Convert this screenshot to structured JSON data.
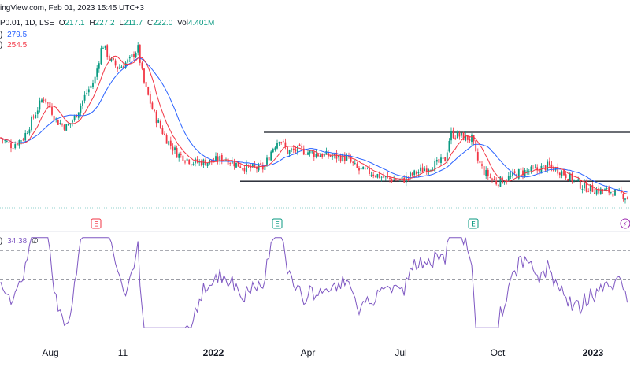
{
  "header": {
    "source_line": "ingView.com, Feb 01, 2023 15:45 UTC+3",
    "ohlc": {
      "prefix": "P0.01, 1D, LSE",
      "open_label": "O",
      "open": "217.1",
      "high_label": "H",
      "high": "227.2",
      "low_label": "L",
      "low": "211.7",
      "close_label": "C",
      "close": "222.0",
      "vol_label": "Vol",
      "vol": "4.401M"
    },
    "ma_slow": {
      "suffix": ")",
      "value": "279.5"
    },
    "ma_fast": {
      "suffix": ")",
      "value": "254.5"
    }
  },
  "rsi_header": {
    "suffix": ")",
    "value": "34.38",
    "extra": "∅"
  },
  "colors": {
    "up": "#089981",
    "down": "#f23645",
    "ma_fast": "#f23645",
    "ma_slow": "#2962ff",
    "rsi": "#7e57c2",
    "earnings": "#f23645",
    "earnings_alt": "#089981"
  },
  "x_axis_labels": [
    "Aug",
    "11",
    "2022",
    "Apr",
    "Jul",
    "Oct",
    "2023"
  ],
  "event_markers": [
    {
      "label": "E",
      "kind": "earnings-red"
    },
    {
      "label": "E",
      "kind": "earnings-green"
    },
    {
      "label": "E",
      "kind": "earnings-green"
    },
    {
      "label": "⚡",
      "kind": "dividend"
    }
  ],
  "chart_data": {
    "type": "line",
    "price_series_keypoints": [
      [
        0,
        460
      ],
      [
        15,
        440
      ],
      [
        30,
        460
      ],
      [
        45,
        520
      ],
      [
        55,
        560
      ],
      [
        62,
        540
      ],
      [
        72,
        500
      ],
      [
        85,
        485
      ],
      [
        95,
        510
      ],
      [
        110,
        570
      ],
      [
        120,
        600
      ],
      [
        130,
        690
      ],
      [
        140,
        650
      ],
      [
        150,
        630
      ],
      [
        165,
        650
      ],
      [
        175,
        680
      ],
      [
        182,
        600
      ],
      [
        195,
        520
      ],
      [
        210,
        460
      ],
      [
        225,
        420
      ],
      [
        245,
        400
      ],
      [
        265,
        400
      ],
      [
        285,
        410
      ],
      [
        300,
        395
      ],
      [
        315,
        385
      ],
      [
        335,
        385
      ],
      [
        345,
        430
      ],
      [
        355,
        460
      ],
      [
        365,
        425
      ],
      [
        380,
        430
      ],
      [
        400,
        420
      ],
      [
        420,
        415
      ],
      [
        440,
        410
      ],
      [
        455,
        380
      ],
      [
        470,
        375
      ],
      [
        490,
        360
      ],
      [
        510,
        355
      ],
      [
        525,
        370
      ],
      [
        540,
        385
      ],
      [
        555,
        395
      ],
      [
        565,
        405
      ],
      [
        572,
        470
      ],
      [
        582,
        465
      ],
      [
        600,
        455
      ],
      [
        605,
        410
      ],
      [
        615,
        375
      ],
      [
        630,
        350
      ],
      [
        645,
        360
      ],
      [
        660,
        375
      ],
      [
        680,
        380
      ],
      [
        695,
        390
      ],
      [
        710,
        380
      ],
      [
        725,
        360
      ],
      [
        740,
        340
      ],
      [
        760,
        330
      ],
      [
        775,
        328
      ],
      [
        790,
        320
      ],
      [
        797,
        312
      ]
    ],
    "horizontal_levels": [
      {
        "value": 473,
        "x_start_index": 335
      },
      {
        "value": 353,
        "x_start_index": 305
      }
    ],
    "rsi": {
      "ylim": [
        15,
        80
      ],
      "reference_lines": [
        70,
        50,
        30
      ],
      "last_value": 34.38
    },
    "ylim": [
      280,
      720
    ]
  }
}
